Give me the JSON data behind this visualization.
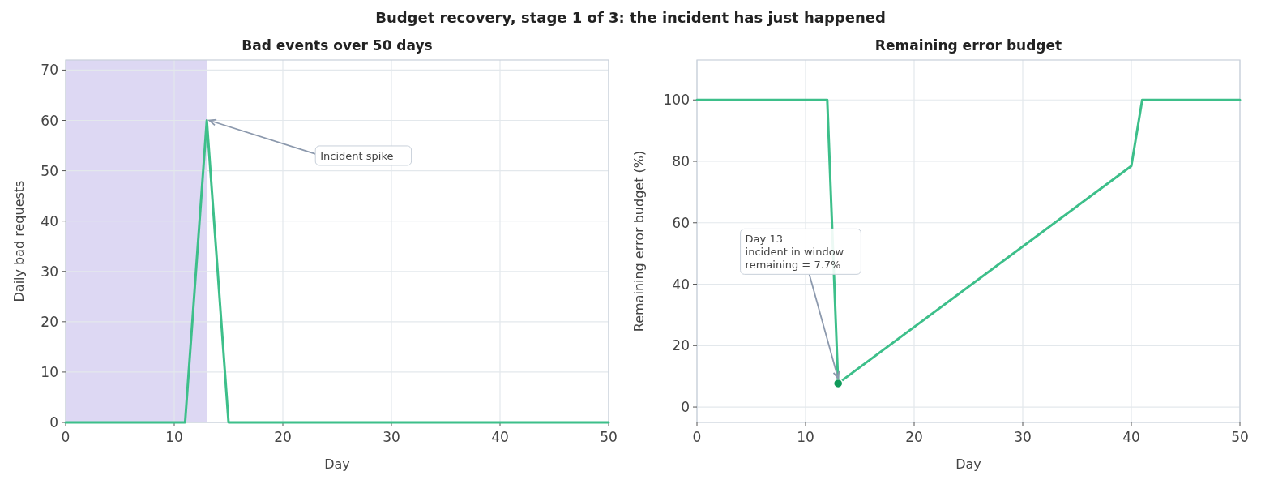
{
  "chart_data": [
    {
      "type": "line",
      "title": "Bad events over 50 days",
      "xlabel": "Day",
      "ylabel": "Daily bad requests",
      "annotations": [
        "Budget recovery, stage 1 of 3: the incident has just happened",
        {
          "text": "Incident spike",
          "x": 13,
          "y": 60
        }
      ],
      "x": [
        0,
        11,
        13,
        15,
        50
      ],
      "series": [
        {
          "color": "#3dbf8a",
          "values": [
            0,
            0,
            60,
            0,
            0
          ]
        }
      ],
      "xlim": [
        0,
        50
      ],
      "xticks": [
        0,
        10,
        20,
        30,
        40,
        50
      ],
      "ylim": [
        0,
        72
      ],
      "yticks": [
        0,
        10,
        20,
        30,
        40,
        50,
        60,
        70
      ],
      "bands": [
        {
          "axis": "x",
          "from": 0,
          "to": 13,
          "color": "#ddd8f3"
        }
      ],
      "grid": true
    },
    {
      "type": "line",
      "title": "Remaining error budget",
      "xlabel": "Day",
      "ylabel": "Remaining error budget (%)",
      "annotations": [
        {
          "text": "Day 13\nincident in window\nremaining = 7.7%",
          "x": 13,
          "y": 7.7
        }
      ],
      "series": [
        {
          "color": "#3dbf8a",
          "x": [
            0,
            12,
            13,
            40,
            41,
            50
          ],
          "values": [
            100,
            100,
            7.7,
            78.5,
            100,
            100
          ]
        },
        {
          "type": "scatter",
          "color": "#109a5a",
          "x": [
            13
          ],
          "values": [
            7.7
          ]
        }
      ],
      "xlim": [
        0,
        50
      ],
      "xticks": [
        0,
        10,
        20,
        30,
        40,
        50
      ],
      "ylim": [
        -5,
        113
      ],
      "yticks": [
        0,
        20,
        40,
        60,
        80,
        100
      ],
      "grid": true
    }
  ]
}
